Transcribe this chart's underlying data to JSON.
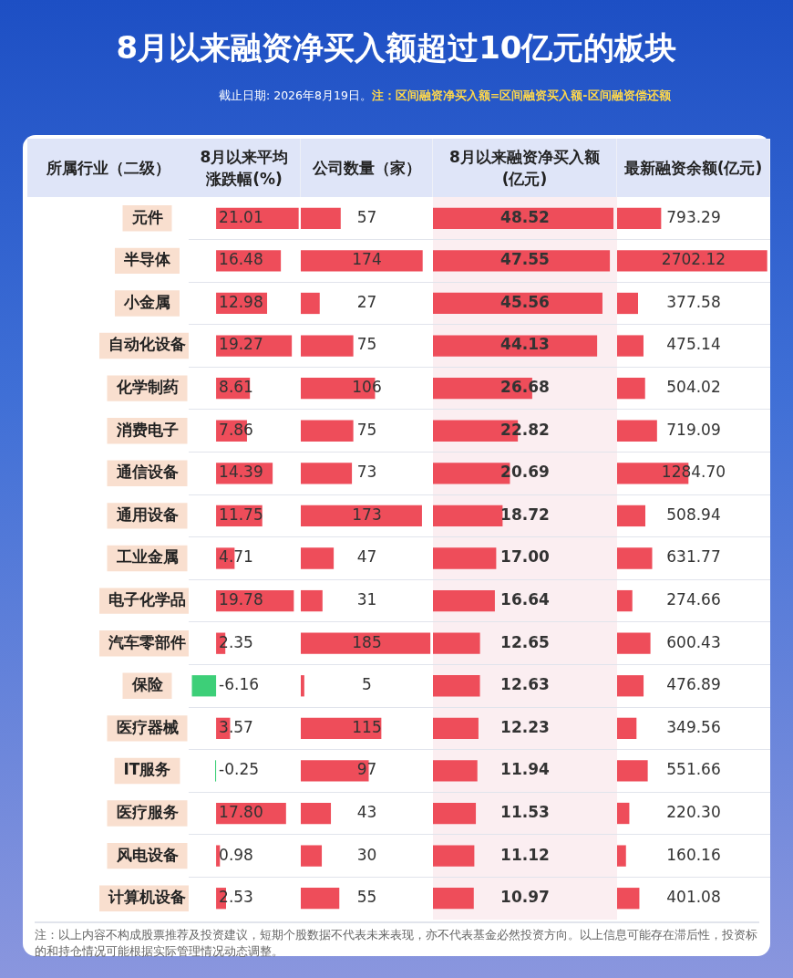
{
  "chart_data": [
    {
      "type": "other",
      "title": "8月以来融资净买入额超过10亿元的板块",
      "annotations": [
        "截止日期: 2026年8月19日。",
        "注：区间融资净买入额=区间融资买入额-区间融资偿还额",
        "注：以上内容不构成股票推荐及投资建议，短期个股数据不代表未来表现，亦不代表基金必然投资方向。以上信息可能存在滞后性，投资标的和持仓情况可能根据实际管理情况动态调整。"
      ]
    },
    {
      "type": "bar",
      "orientation": "horizontal",
      "title": "8月以来平均涨跌幅(%)",
      "ylabel": "所属行业（二级）",
      "grid": "y",
      "tick_labels": "y",
      "categories": [
        "元件",
        "半导体",
        "小金属",
        "自动化设备",
        "化学制药",
        "消费电子",
        "通信设备",
        "通用设备",
        "工业金属",
        "电子化学品",
        "汽车零部件",
        "保险",
        "医疗器械",
        "IT服务",
        "医疗服务",
        "风电设备",
        "计算机设备"
      ],
      "values": [
        21.01,
        16.48,
        12.98,
        19.27,
        8.61,
        7.86,
        14.39,
        11.75,
        4.71,
        19.78,
        2.35,
        -6.16,
        3.57,
        -0.25,
        17.8,
        0.98,
        2.53
      ],
      "colors": [
        "#ee4d5a",
        "#ee4d5a",
        "#ee4d5a",
        "#ee4d5a",
        "#ee4d5a",
        "#ee4d5a",
        "#ee4d5a",
        "#ee4d5a",
        "#ee4d5a",
        "#ee4d5a",
        "#ee4d5a",
        "#3dcf78",
        "#ee4d5a",
        "#3dcf78",
        "#ee4d5a",
        "#ee4d5a",
        "#ee4d5a"
      ],
      "value_labels": [
        "21.01",
        "16.48",
        "12.98",
        "19.27",
        "8.61",
        "7.86",
        "14.39",
        "11.75",
        "4.71",
        "19.78",
        "2.35",
        "-6.16",
        "3.57",
        "-0.25",
        "17.80",
        "0.98",
        "2.53"
      ]
    },
    {
      "type": "bar",
      "orientation": "horizontal",
      "title": "公司数量（家）",
      "grid": "y",
      "tick_labels": false,
      "color": "#ee4d5a",
      "categories": [
        null,
        null,
        null,
        null,
        null,
        null,
        null,
        null,
        null,
        null,
        null,
        null,
        null,
        null,
        null,
        null,
        null
      ],
      "values": [
        57,
        174,
        27,
        75,
        106,
        75,
        73,
        173,
        47,
        31,
        185,
        5,
        115,
        97,
        43,
        30,
        55
      ],
      "value_labels": [
        "57",
        "174",
        "27",
        "75",
        "106",
        "75",
        "73",
        "173",
        "47",
        "31",
        "185",
        "5",
        "115",
        "97",
        "43",
        "30",
        "55"
      ]
    },
    {
      "type": "bar",
      "orientation": "horizontal",
      "title": "8月以来融资净买入额(亿元)",
      "grid": "y",
      "tick_labels": false,
      "color": "#ee4d5a",
      "categories": [
        null,
        null,
        null,
        null,
        null,
        null,
        null,
        null,
        null,
        null,
        null,
        null,
        null,
        null,
        null,
        null,
        null
      ],
      "values": [
        48.52,
        47.55,
        45.56,
        44.13,
        26.68,
        22.82,
        20.69,
        18.72,
        17.0,
        16.64,
        12.65,
        12.63,
        12.23,
        11.94,
        11.53,
        11.12,
        10.97
      ],
      "value_labels": [
        "48.52",
        "47.55",
        "45.56",
        "44.13",
        "26.68",
        "22.82",
        "20.69",
        "18.72",
        "17.00",
        "16.64",
        "12.65",
        "12.63",
        "12.23",
        "11.94",
        "11.53",
        "11.12",
        "10.97"
      ]
    },
    {
      "type": "bar",
      "orientation": "horizontal",
      "title": "最新融资余额(亿元)",
      "grid": "y",
      "tick_labels": false,
      "color": "#ee4d5a",
      "categories": [
        null,
        null,
        null,
        null,
        null,
        null,
        null,
        null,
        null,
        null,
        null,
        null,
        null,
        null,
        null,
        null,
        null
      ],
      "values": [
        793.29,
        2702.12,
        377.58,
        475.14,
        504.02,
        719.09,
        1284.7,
        508.94,
        631.77,
        274.66,
        600.43,
        476.89,
        349.56,
        551.66,
        220.3,
        160.16,
        401.08
      ],
      "value_labels": [
        "793.29",
        "2702.12",
        "377.58",
        "475.14",
        "504.02",
        "719.09",
        "1284.70",
        "508.94",
        "631.77",
        "274.66",
        "600.43",
        "476.89",
        "349.56",
        "551.66",
        "220.30",
        "160.16",
        "401.08"
      ]
    }
  ]
}
